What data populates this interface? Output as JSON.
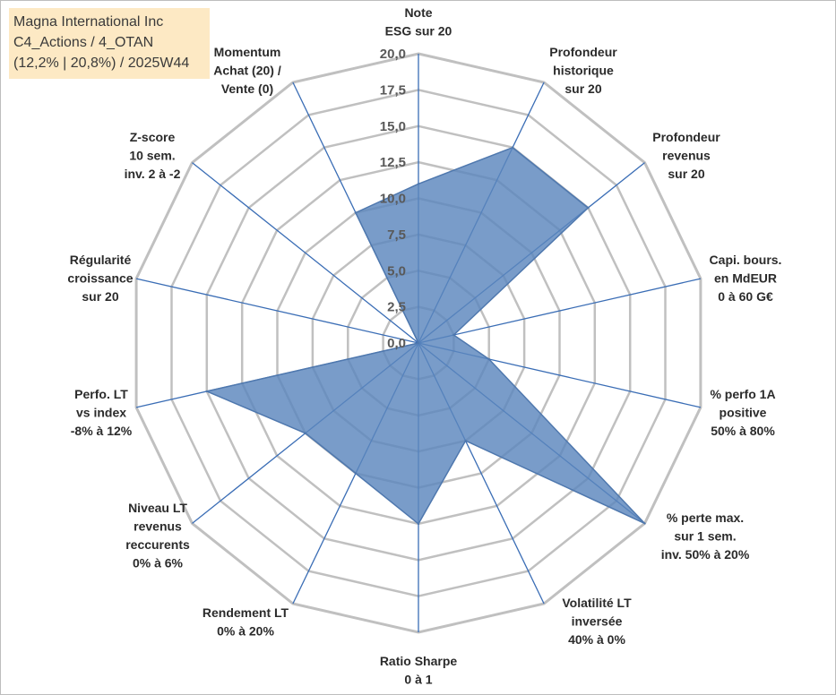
{
  "title_box": {
    "line1": "Magna International Inc",
    "line2": "C4_Actions / 4_OTAN",
    "line3": "(12,2% | 20,8%) / 2025W44",
    "background": "#fde9c4"
  },
  "chart_data": {
    "type": "radar",
    "r_min": 0,
    "r_max": 20,
    "tick_labels": [
      "0,0",
      "2,5",
      "5,0",
      "7,5",
      "10,0",
      "12,5",
      "15,0",
      "17,5",
      "20,0"
    ],
    "tick_values": [
      0,
      2.5,
      5,
      7.5,
      10,
      12.5,
      15,
      17.5,
      20
    ],
    "grid": true,
    "grid_color": "#c0c0c0",
    "spoke_color": "#3a6db5",
    "fill_color": "#5b86bd",
    "categories": [
      [
        "Note",
        "ESG sur 20"
      ],
      [
        "Profondeur",
        "historique",
        "sur 20"
      ],
      [
        "Profondeur",
        "revenus",
        "sur 20"
      ],
      [
        "Capi. bours.",
        "en MdEUR",
        "0 à 60 G€"
      ],
      [
        "% perfo 1A",
        "positive",
        "50% à 80%"
      ],
      [
        "% perte max.",
        "sur 1 sem.",
        "inv. 50% à 20%"
      ],
      [
        "Volatilité LT",
        "inversée",
        "40% à 0%"
      ],
      [
        "Ratio Sharpe",
        "0 à 1"
      ],
      [
        "Rendement LT",
        "0% à 20%"
      ],
      [
        "Niveau LT",
        "revenus",
        "reccurents",
        "0% à 6%"
      ],
      [
        "Perfo. LT",
        "vs index",
        "-8% à 12%"
      ],
      [
        "Régularité",
        "croissance",
        "sur 20"
      ],
      [
        "Z-score",
        "10 sem.",
        "inv. 2 à -2"
      ],
      [
        "Momentum",
        "Achat (20) /",
        "Vente (0)"
      ]
    ],
    "series": [
      {
        "values": [
          11,
          15,
          15,
          2.5,
          5,
          20,
          7.5,
          12.5,
          10,
          10,
          15,
          0,
          0,
          10
        ]
      }
    ]
  }
}
